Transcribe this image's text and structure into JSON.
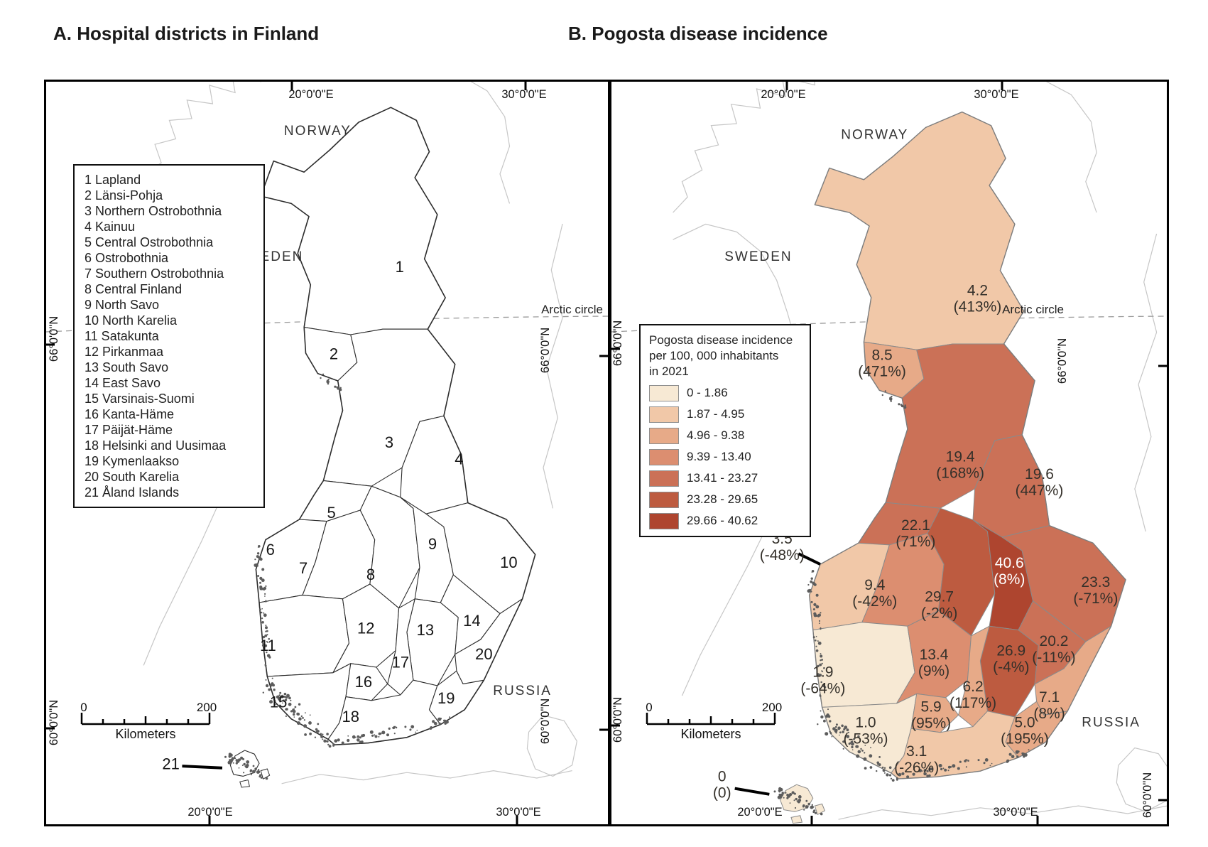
{
  "titles": {
    "panel_a": "A. Hospital districts in Finland",
    "panel_b": "B. Pogosta disease incidence"
  },
  "countries": {
    "norway": "NORWAY",
    "sweden": "SWEDEN",
    "russia": "RUSSIA"
  },
  "annotations": {
    "arctic_circle": "Arctic circle"
  },
  "graticule": {
    "lon_20": "20°0'0\"E",
    "lon_30": "30°0'0\"E",
    "lat_66": "66°0'0\"N",
    "lat_60": "60°0'0\"N"
  },
  "scale_bar": {
    "zero": "0",
    "max": "200",
    "unit": "Kilometers"
  },
  "legend_b": {
    "title_lines": [
      "Pogosta disease incidence",
      "per 100, 000 inhabitants",
      "in 2021"
    ],
    "classes": [
      {
        "label": "0 - 1.86",
        "color": "#f7e9d4"
      },
      {
        "label": "1.87 - 4.95",
        "color": "#f1c8a8"
      },
      {
        "label": "4.96 - 9.38",
        "color": "#e7aa88"
      },
      {
        "label": "9.39 - 13.40",
        "color": "#dc8e70"
      },
      {
        "label": "13.41 - 23.27",
        "color": "#cb7157"
      },
      {
        "label": "23.28 - 29.65",
        "color": "#bd5b40"
      },
      {
        "label": "29.66 - 40.62",
        "color": "#ae452f"
      }
    ]
  },
  "districts": [
    {
      "num": "1",
      "name": "Lapland",
      "value": "4.2",
      "change": "(413%)",
      "cls": 2
    },
    {
      "num": "2",
      "name": "Länsi-Pohja",
      "value": "8.5",
      "change": "(471%)",
      "cls": 3
    },
    {
      "num": "3",
      "name": "Northern Ostrobothnia",
      "value": "19.4",
      "change": "(168%)",
      "cls": 5
    },
    {
      "num": "4",
      "name": "Kainuu",
      "value": "19.6",
      "change": "(447%)",
      "cls": 5
    },
    {
      "num": "5",
      "name": "Central Ostrobothnia",
      "value": "22.1",
      "change": "(71%)",
      "cls": 5
    },
    {
      "num": "6",
      "name": "Ostrobothnia",
      "value": "3.5",
      "change": "(-48%)",
      "cls": 2
    },
    {
      "num": "7",
      "name": "Southern Ostrobothnia",
      "value": "9.4",
      "change": "(-42%)",
      "cls": 4
    },
    {
      "num": "8",
      "name": "Central Finland",
      "value": "29.7",
      "change": "(-2%)",
      "cls": 6
    },
    {
      "num": "9",
      "name": "North Savo",
      "value": "40.6",
      "change": "(8%)",
      "cls": 7
    },
    {
      "num": "10",
      "name": "North Karelia",
      "value": "23.3",
      "change": "(-71%)",
      "cls": 5
    },
    {
      "num": "11",
      "name": "Satakunta",
      "value": "1.9",
      "change": "(-64%)",
      "cls": 1
    },
    {
      "num": "12",
      "name": "Pirkanmaa",
      "value": "13.4",
      "change": "(9%)",
      "cls": 4
    },
    {
      "num": "13",
      "name": "South Savo",
      "value": "26.9",
      "change": "(-4%)",
      "cls": 6
    },
    {
      "num": "14",
      "name": "East Savo",
      "value": "20.2",
      "change": "(-11%)",
      "cls": 5
    },
    {
      "num": "15",
      "name": "Varsinais-Suomi",
      "value": "1.0",
      "change": "(-53%)",
      "cls": 1
    },
    {
      "num": "16",
      "name": "Kanta-Häme",
      "value": "5.9",
      "change": "(95%)",
      "cls": 3
    },
    {
      "num": "17",
      "name": "Päijät-Häme",
      "value": "6.2",
      "change": "(117%)",
      "cls": 3
    },
    {
      "num": "18",
      "name": "Helsinki and Uusimaa",
      "value": "3.1",
      "change": "(-26%)",
      "cls": 2
    },
    {
      "num": "19",
      "name": "Kymenlaakso",
      "value": "5.0",
      "change": "(195%)",
      "cls": 3
    },
    {
      "num": "20",
      "name": "South Karelia",
      "value": "7.1",
      "change": "(8%)",
      "cls": 3
    },
    {
      "num": "21",
      "name": "Åland Islands",
      "value": "0",
      "change": "(0)",
      "cls": 1
    }
  ]
}
